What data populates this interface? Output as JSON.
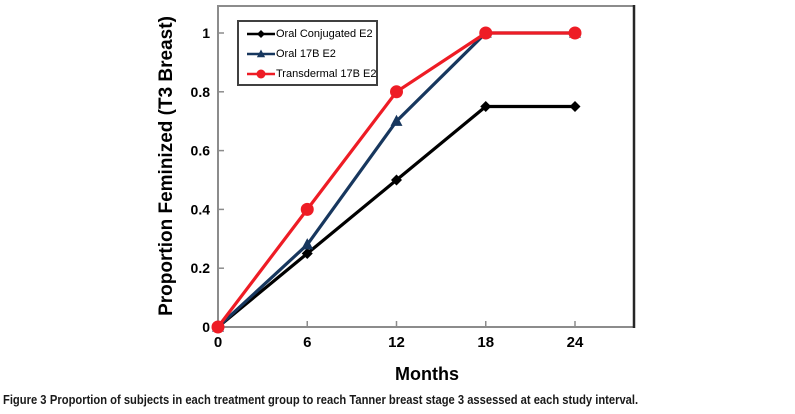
{
  "figure": {
    "caption_label": "Figure 3",
    "caption_text": "Proportion of subjects in each treatment group to reach Tanner breast stage 3 assessed at each study interval."
  },
  "chart_data": {
    "type": "line",
    "title": "",
    "xlabel": "Months",
    "ylabel": "Proportion Feminized (T3 Breast)",
    "x": [
      0,
      6,
      12,
      18,
      24
    ],
    "x_ticks": [
      "0",
      "6",
      "12",
      "18",
      "24"
    ],
    "y_ticks": [
      "0",
      "0.2",
      "0.4",
      "0.6",
      "0.8",
      "1"
    ],
    "y_tick_values": [
      0,
      0.2,
      0.4,
      0.6,
      0.8,
      1
    ],
    "xlim": [
      0,
      28
    ],
    "ylim": [
      0,
      1.05
    ],
    "grid": false,
    "legend_position": "top-left-inside",
    "axis_color": "#8c8c8c",
    "series": [
      {
        "name": "Oral Conjugated E2",
        "color": "#000000",
        "marker": "diamond",
        "values": [
          0,
          0.25,
          0.5,
          0.75,
          0.75
        ]
      },
      {
        "name": "Oral 17B E2",
        "color": "#17375e",
        "marker": "triangle",
        "values": [
          0,
          0.28,
          0.7,
          1.0,
          1.0
        ]
      },
      {
        "name": "Transdermal 17B E2",
        "color": "#ee1c25",
        "marker": "circle",
        "values": [
          0,
          0.4,
          0.8,
          1.0,
          1.0
        ]
      }
    ]
  }
}
